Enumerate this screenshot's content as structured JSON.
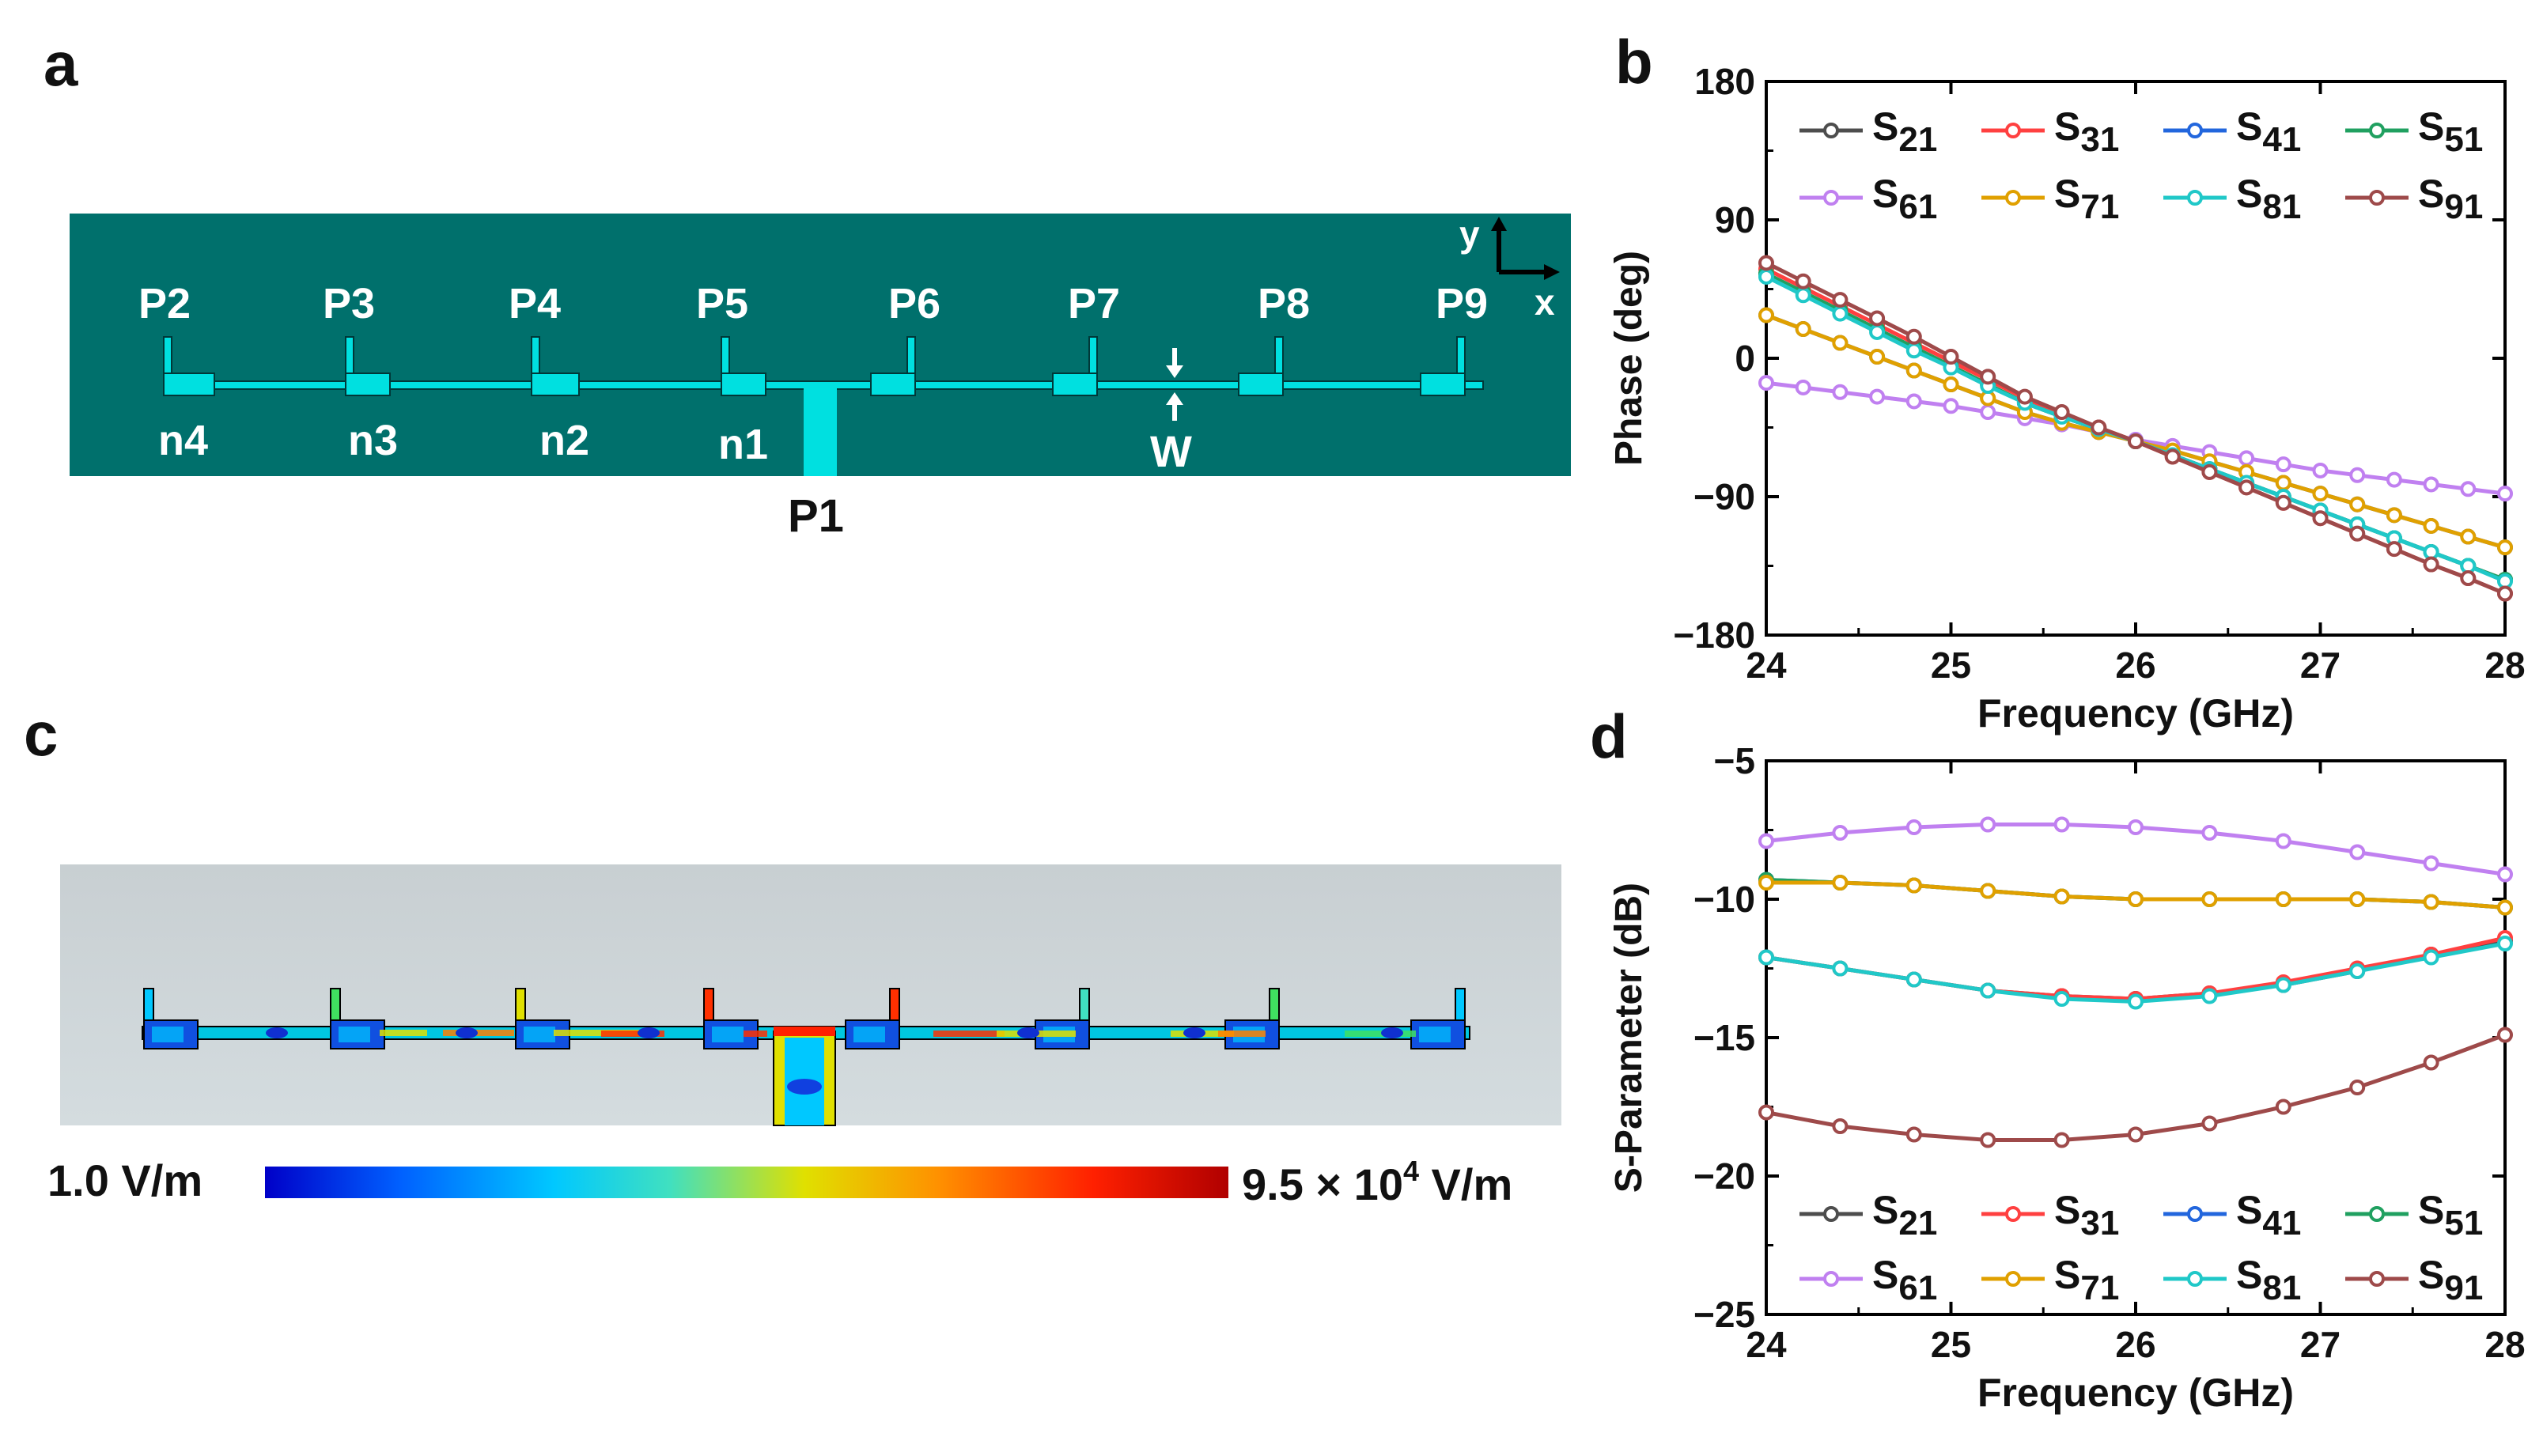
{
  "panel_letters": {
    "a": "a",
    "b": "b",
    "c": "c",
    "d": "d"
  },
  "panel_a": {
    "ports_top": [
      "P2",
      "P3",
      "P4",
      "P5",
      "P6",
      "P7",
      "P8",
      "P9"
    ],
    "nodes_bottom": [
      "n4",
      "n3",
      "n2",
      "n1"
    ],
    "feed_port": "P1",
    "width_label": "W",
    "axis_y": "y",
    "axis_x": "x",
    "colors": {
      "substrate": "#00706C",
      "conductor": "#00E0E0"
    }
  },
  "panel_c": {
    "colorbar_min": "1.0 V/m",
    "colorbar_max_prefix": "9.5 × 10",
    "colorbar_max_exp": "4",
    "colorbar_max_unit": " V/m",
    "colors": [
      "#0000C8",
      "#0060FF",
      "#00C8FF",
      "#40E0C0",
      "#E0E000",
      "#FF9000",
      "#FF2000",
      "#B00000"
    ]
  },
  "chart_data": [
    {
      "panel": "b",
      "type": "line",
      "title": "",
      "xlabel": "Frequency (GHz)",
      "ylabel": "Phase (deg)",
      "xlim": [
        24,
        28
      ],
      "ylim": [
        -180,
        180
      ],
      "xticks": [
        24,
        25,
        26,
        27,
        28
      ],
      "yticks": [
        -180,
        -90,
        0,
        90,
        180
      ],
      "xtick_labels": [
        "24",
        "25",
        "26",
        "27",
        "28"
      ],
      "ytick_labels": [
        "−180",
        "−90",
        "0",
        "90",
        "180"
      ],
      "x": [
        24,
        24.2,
        24.4,
        24.6,
        24.8,
        25.0,
        25.2,
        25.4,
        25.6,
        25.8,
        26.0,
        26.2,
        26.4,
        26.6,
        26.8,
        27.0,
        27.2,
        27.4,
        27.6,
        27.8,
        28.0
      ],
      "series": [
        {
          "name": "S21",
          "sub": "21",
          "color": "#4D4D4D",
          "values": [
            55,
            43,
            31,
            19,
            7,
            -5,
            -17,
            -29,
            -38,
            -46,
            -54,
            -63,
            -72,
            -81,
            -90,
            -99,
            -108,
            -117,
            -126,
            -135,
            -144
          ]
        },
        {
          "name": "S31",
          "sub": "31",
          "color": "#FF4040",
          "values": [
            58,
            46,
            34,
            22,
            10,
            -2,
            -14,
            -26,
            -36,
            -45,
            -54,
            -64,
            -74,
            -84,
            -94,
            -104,
            -114,
            -124,
            -134,
            -143,
            -153
          ]
        },
        {
          "name": "S41",
          "sub": "41",
          "color": "#2266DD",
          "values": [
            28,
            19,
            10,
            1,
            -8,
            -17,
            -26,
            -35,
            -42,
            -48,
            -54,
            -60,
            -67,
            -74,
            -81,
            -88,
            -95,
            -102,
            -109,
            -116,
            -123
          ]
        },
        {
          "name": "S51",
          "sub": "51",
          "color": "#20A060",
          "values": [
            55,
            43,
            31,
            19,
            7,
            -5,
            -17,
            -29,
            -38,
            -46,
            -54,
            -63,
            -72,
            -81,
            -90,
            -99,
            -108,
            -117,
            -126,
            -135,
            -144
          ]
        },
        {
          "name": "S61",
          "sub": "61",
          "color": "#C080F0",
          "values": [
            -16,
            -19,
            -22,
            -25,
            -28,
            -31,
            -35,
            -39,
            -43,
            -48,
            -53,
            -57,
            -61,
            -65,
            -69,
            -73,
            -76,
            -79,
            -82,
            -85,
            -88
          ]
        },
        {
          "name": "S71",
          "sub": "71",
          "color": "#E0A000",
          "values": [
            28,
            19,
            10,
            1,
            -8,
            -17,
            -26,
            -35,
            -42,
            -48,
            -54,
            -60,
            -67,
            -74,
            -81,
            -88,
            -95,
            -102,
            -109,
            -116,
            -123
          ]
        },
        {
          "name": "S81",
          "sub": "81",
          "color": "#20C8C8",
          "values": [
            53,
            41,
            29,
            17,
            5,
            -6,
            -18,
            -29,
            -38,
            -46,
            -54,
            -63,
            -72,
            -81,
            -90,
            -99,
            -108,
            -117,
            -126,
            -135,
            -145
          ]
        },
        {
          "name": "S91",
          "sub": "91",
          "color": "#9E4A4A",
          "values": [
            62,
            50,
            38,
            26,
            14,
            1,
            -12,
            -25,
            -35,
            -45,
            -54,
            -64,
            -74,
            -84,
            -94,
            -104,
            -114,
            -124,
            -134,
            -143,
            -153
          ]
        }
      ]
    },
    {
      "panel": "d",
      "type": "line",
      "title": "",
      "xlabel": "Frequency (GHz)",
      "ylabel": "S-Parameter (dB)",
      "xlim": [
        24,
        28
      ],
      "ylim": [
        -25,
        -5
      ],
      "xticks": [
        24,
        25,
        26,
        27,
        28
      ],
      "yticks": [
        -25,
        -20,
        -15,
        -10,
        -5
      ],
      "xtick_labels": [
        "24",
        "25",
        "26",
        "27",
        "28"
      ],
      "ytick_labels": [
        "−25",
        "−20",
        "−15",
        "−10",
        "−5"
      ],
      "x": [
        24,
        24.4,
        24.8,
        25.2,
        25.6,
        26.0,
        26.4,
        26.8,
        27.2,
        27.6,
        28.0
      ],
      "series": [
        {
          "name": "S21",
          "sub": "21",
          "color": "#4D4D4D",
          "values": [
            -12.1,
            -12.5,
            -12.9,
            -13.3,
            -13.5,
            -13.6,
            -13.4,
            -13.1,
            -12.6,
            -12.0,
            -11.5
          ]
        },
        {
          "name": "S31",
          "sub": "31",
          "color": "#FF4040",
          "values": [
            -12.1,
            -12.5,
            -12.9,
            -13.3,
            -13.5,
            -13.6,
            -13.4,
            -13.0,
            -12.5,
            -12.0,
            -11.4
          ]
        },
        {
          "name": "S41",
          "sub": "41",
          "color": "#2266DD",
          "values": [
            -9.3,
            -9.4,
            -9.5,
            -9.7,
            -9.9,
            -10.0,
            -10.0,
            -10.0,
            -10.0,
            -10.1,
            -10.3
          ]
        },
        {
          "name": "S51",
          "sub": "51",
          "color": "#20A060",
          "values": [
            -9.3,
            -9.4,
            -9.5,
            -9.7,
            -9.9,
            -10.0,
            -10.0,
            -10.0,
            -10.0,
            -10.1,
            -10.3
          ]
        },
        {
          "name": "S61",
          "sub": "61",
          "color": "#C080F0",
          "values": [
            -7.9,
            -7.6,
            -7.4,
            -7.3,
            -7.3,
            -7.4,
            -7.6,
            -7.9,
            -8.3,
            -8.7,
            -9.1
          ]
        },
        {
          "name": "S71",
          "sub": "71",
          "color": "#E0A000",
          "values": [
            -9.4,
            -9.4,
            -9.5,
            -9.7,
            -9.9,
            -10.0,
            -10.0,
            -10.0,
            -10.0,
            -10.1,
            -10.3
          ]
        },
        {
          "name": "S81",
          "sub": "81",
          "color": "#20C8C8",
          "values": [
            -12.1,
            -12.5,
            -12.9,
            -13.3,
            -13.6,
            -13.7,
            -13.5,
            -13.1,
            -12.6,
            -12.1,
            -11.6
          ]
        },
        {
          "name": "S91",
          "sub": "91",
          "color": "#9E4A4A",
          "values": [
            -17.7,
            -18.2,
            -18.5,
            -18.7,
            -18.7,
            -18.5,
            -18.1,
            -17.5,
            -16.8,
            -15.9,
            -14.9
          ]
        }
      ]
    }
  ]
}
